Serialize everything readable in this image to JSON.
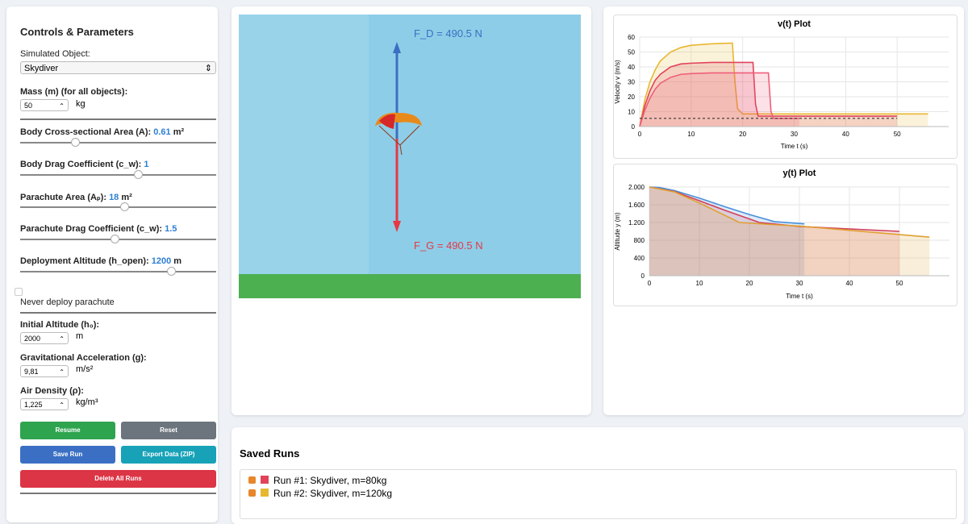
{
  "controls": {
    "title": "Controls & Parameters",
    "object": {
      "label": "Simulated Object:",
      "value": "Skydiver"
    },
    "mass": {
      "label": "Mass (m) (for all objects):",
      "value": "50",
      "unit": "kg"
    },
    "sliders": [
      {
        "label": "Body Cross-sectional Area (A): ",
        "value": "0.61",
        "unit": " m²"
      },
      {
        "label": "Body Drag Coefficient (c_w): ",
        "value": "1"
      },
      {
        "label": "Parachute Area (Aₚ): ",
        "value": "18",
        "unit": " m²"
      },
      {
        "label": "Parachute Drag Coefficient (c_w): ",
        "value": "1.5"
      },
      {
        "label": "Deployment Altitude (h_open): ",
        "value": "1200",
        "unit": " m"
      }
    ],
    "never_deploy": "Never deploy parachute",
    "inputs": [
      {
        "label": "Initial Altitude (h₀):",
        "value": "2000",
        "unit": "m"
      },
      {
        "label": "Gravitational Acceleration (g):",
        "value": "9,81",
        "unit": "m/s²"
      },
      {
        "label": "Air Density (ρ):",
        "value": "1,225",
        "unit": "kg/m³"
      }
    ],
    "buttons": [
      "Resume",
      "Reset",
      "Save Run",
      "Export Data (ZIP)",
      "Delete All Runs"
    ]
  },
  "simulation": {
    "drag_label": "F_D = 490.5 N",
    "gravity_label": "F_G = 490.5 N"
  },
  "plots": [
    {
      "type": "line",
      "title": "v(t) Plot",
      "x_label": "Time t (s)",
      "y_label": "Velocity v (m/s)",
      "xlim": [
        0,
        60
      ],
      "ylim": [
        0,
        60
      ],
      "xticks": [
        0,
        10,
        20,
        30,
        40,
        50
      ],
      "yticks": [
        0,
        10,
        20,
        30,
        40,
        50,
        60
      ],
      "grid": true,
      "series": [
        {
          "color": "#e8b730",
          "x": [
            0,
            1,
            2,
            3,
            4,
            6,
            8,
            10,
            14,
            18,
            18.5,
            19,
            20,
            56
          ],
          "values": [
            0,
            18,
            30,
            38,
            44,
            50,
            53,
            54.5,
            55.5,
            56,
            30,
            12,
            8.5,
            8.5
          ]
        },
        {
          "color": "#e0435a",
          "x": [
            0,
            1,
            2,
            3,
            4,
            6,
            8,
            10,
            14,
            22,
            22.5,
            23,
            50
          ],
          "values": [
            0,
            14,
            24,
            31,
            35,
            40,
            42,
            42.5,
            43,
            43,
            15,
            7,
            7
          ]
        },
        {
          "color": "#ef5f7a",
          "x": [
            0,
            1,
            2,
            3,
            4,
            6,
            8,
            10,
            14,
            25,
            25.5,
            26,
            31
          ],
          "values": [
            0,
            11,
            19,
            25,
            29,
            33,
            35,
            35.5,
            36,
            36,
            10,
            5.5,
            5.5
          ]
        },
        {
          "color": "#333333",
          "dash": true,
          "x": [
            0,
            50
          ],
          "values": [
            5.5,
            5.5
          ]
        }
      ]
    },
    {
      "type": "line",
      "title": "y(t) Plot",
      "x_label": "Time t (s)",
      "y_label": "Altitude y (m)",
      "xlim": [
        0,
        60
      ],
      "ylim": [
        0,
        2000
      ],
      "xticks": [
        0,
        10,
        20,
        30,
        40,
        50
      ],
      "yticks": [
        0,
        400,
        800,
        {
          "value": 1200,
          "label": "1.200"
        },
        {
          "value": 1600,
          "label": "1.600"
        },
        {
          "value": 2000,
          "label": "2.000"
        }
      ],
      "grid": true,
      "series": [
        {
          "color": "#4a90d9",
          "x": [
            0,
            2,
            5,
            10,
            15,
            20,
            25,
            31
          ],
          "values": [
            2000,
            1990,
            1920,
            1750,
            1560,
            1380,
            1220,
            1170
          ]
        },
        {
          "color": "#d0405a",
          "x": [
            0,
            5,
            10,
            15,
            22,
            30,
            50
          ],
          "values": [
            2000,
            1900,
            1690,
            1480,
            1200,
            1110,
            1000
          ]
        },
        {
          "color": "#e0a030",
          "x": [
            0,
            5,
            10,
            18,
            25,
            30,
            56
          ],
          "values": [
            2000,
            1890,
            1640,
            1200,
            1150,
            1120,
            870
          ]
        }
      ]
    }
  ],
  "saved_runs": {
    "title": "Saved Runs",
    "runs": [
      {
        "label": "Run #1: Skydiver, m=80kg",
        "color": "#e0435a"
      },
      {
        "label": "Run #2: Skydiver, m=120kg",
        "color": "#e8b730"
      }
    ]
  }
}
